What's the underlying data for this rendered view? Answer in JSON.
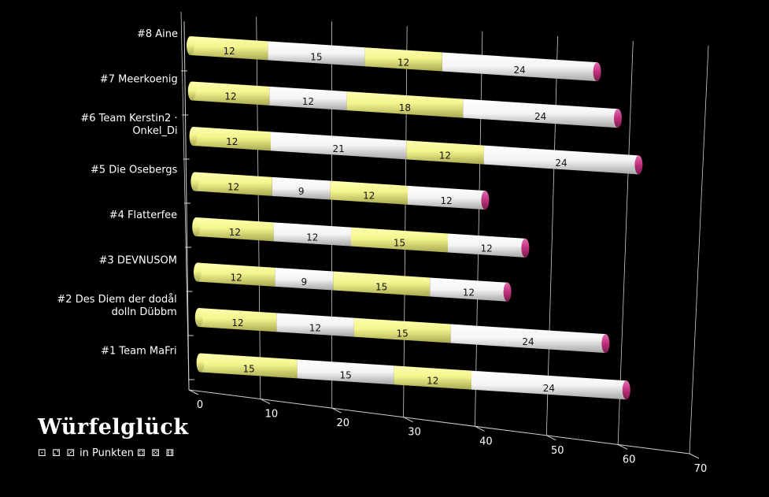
{
  "brand": {
    "title": "Würfelglück",
    "subtitle": "in Punkten",
    "dice_left": "⚀ ⚁ ⚂",
    "dice_right": "⚃ ⚄ ⚅"
  },
  "chart_data": {
    "type": "bar",
    "orientation": "horizontal",
    "stacked": true,
    "style": "3d-cylinder",
    "categories": [
      "#8 Aine",
      "#7 Meerkoenig",
      "#6 Team Kerstin2 · Onkel_Di",
      "#5 Die Osebergs",
      "#4 Flatterfee",
      "#3 DEVNUSOM",
      "#2 Des Diem der dodål dolln Dübbm",
      "#1 Team MaFri"
    ],
    "segments": [
      [
        12,
        15,
        12,
        24
      ],
      [
        12,
        12,
        18,
        24
      ],
      [
        12,
        21,
        12,
        24
      ],
      [
        12,
        9,
        12,
        12
      ],
      [
        12,
        12,
        15,
        12
      ],
      [
        12,
        9,
        15,
        12
      ],
      [
        12,
        12,
        15,
        24
      ],
      [
        15,
        15,
        12,
        24
      ]
    ],
    "segment_colors": [
      "#f5f595",
      "#ffffff",
      "#f5f595",
      "#ffffff"
    ],
    "end_cap_color": "#c0307c",
    "xlim": [
      0,
      70
    ],
    "xticks": [
      0,
      10,
      20,
      30,
      40,
      50,
      60,
      70
    ],
    "grid": true,
    "title": "",
    "xlabel": "",
    "ylabel": ""
  }
}
